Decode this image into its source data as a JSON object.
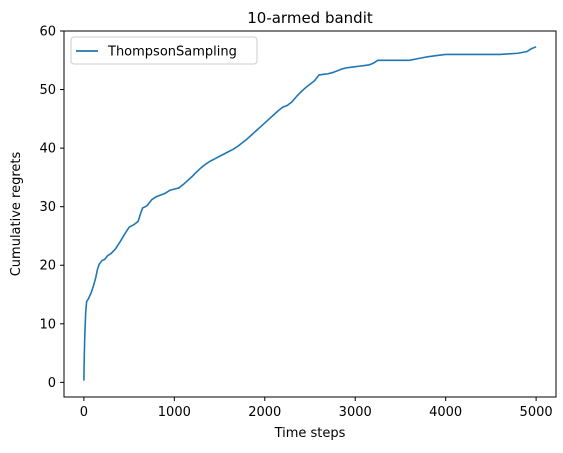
{
  "chart_data": {
    "type": "line",
    "title": "10-armed bandit",
    "xlabel": "Time steps",
    "ylabel": "Cumulative regrets",
    "xlim": [
      -220,
      5220
    ],
    "ylim": [
      -2.5,
      60
    ],
    "xticks": [
      0,
      1000,
      2000,
      3000,
      4000,
      5000
    ],
    "yticks": [
      0,
      10,
      20,
      30,
      40,
      50,
      60
    ],
    "grid": false,
    "legend_position": "top-left",
    "series": [
      {
        "name": "ThompsonSampling",
        "color": "#1f77b4",
        "x": [
          0,
          2,
          5,
          10,
          20,
          30,
          40,
          50,
          60,
          80,
          100,
          130,
          150,
          170,
          200,
          230,
          260,
          300,
          350,
          400,
          450,
          500,
          550,
          600,
          630,
          650,
          680,
          700,
          750,
          800,
          850,
          900,
          950,
          1000,
          1050,
          1100,
          1150,
          1200,
          1250,
          1300,
          1350,
          1400,
          1450,
          1500,
          1550,
          1600,
          1650,
          1700,
          1750,
          1800,
          1850,
          1900,
          1950,
          2000,
          2050,
          2100,
          2150,
          2200,
          2250,
          2300,
          2350,
          2400,
          2450,
          2500,
          2550,
          2600,
          2650,
          2700,
          2750,
          2800,
          2850,
          2900,
          2950,
          3000,
          3050,
          3100,
          3150,
          3200,
          3250,
          3300,
          3400,
          3500,
          3600,
          3700,
          3800,
          3900,
          4000,
          4200,
          4400,
          4600,
          4800,
          4900,
          4950,
          5000
        ],
        "y": [
          0.3,
          2.5,
          5,
          8,
          12,
          13.8,
          14,
          14.3,
          14.6,
          15.3,
          16.2,
          17.8,
          19.3,
          20.2,
          20.8,
          21,
          21.6,
          22,
          22.8,
          24,
          25.3,
          26.5,
          26.9,
          27.5,
          29,
          29.8,
          30,
          30.2,
          31.2,
          31.7,
          32,
          32.3,
          32.8,
          33,
          33.2,
          33.8,
          34.5,
          35.2,
          36,
          36.7,
          37.3,
          37.8,
          38.2,
          38.6,
          39,
          39.4,
          39.8,
          40.3,
          40.9,
          41.5,
          42.2,
          42.9,
          43.6,
          44.3,
          45,
          45.7,
          46.4,
          47,
          47.3,
          47.9,
          48.8,
          49.6,
          50.3,
          50.9,
          51.5,
          52.5,
          52.6,
          52.7,
          52.9,
          53.2,
          53.5,
          53.7,
          53.8,
          53.9,
          54,
          54.1,
          54.2,
          54.5,
          55,
          55,
          55,
          55,
          55,
          55.3,
          55.6,
          55.8,
          56,
          56,
          56,
          56,
          56.2,
          56.5,
          57,
          57.3
        ]
      }
    ]
  }
}
